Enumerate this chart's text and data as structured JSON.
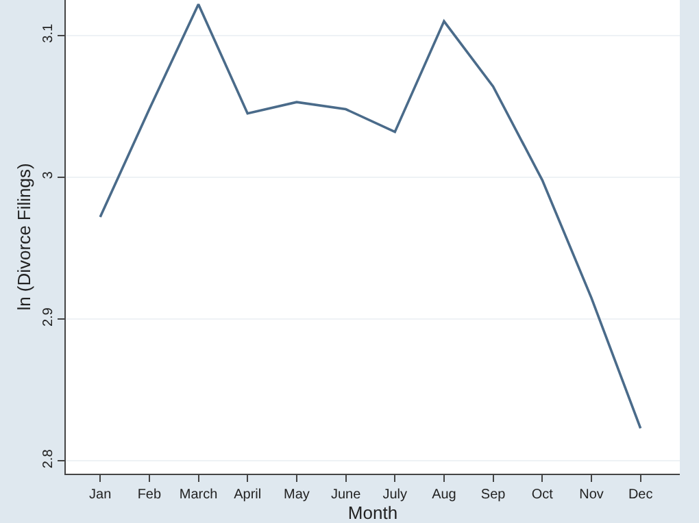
{
  "chart_data": {
    "type": "line",
    "xlabel": "Month",
    "ylabel": "ln (Divorce Filings)",
    "categories": [
      "Jan",
      "Feb",
      "March",
      "April",
      "May",
      "June",
      "July",
      "Aug",
      "Sep",
      "Oct",
      "Nov",
      "Dec"
    ],
    "series": [
      {
        "color": "#4a6b8a",
        "values": [
          2.972,
          3.048,
          3.122,
          3.045,
          3.053,
          3.048,
          3.032,
          3.11,
          3.064,
          2.998,
          2.915,
          2.823
        ]
      }
    ],
    "ylim": [
      2.791,
      3.125
    ],
    "yticks": [
      2.8,
      2.9,
      3,
      3.1
    ],
    "grid": "y",
    "legend": false,
    "marker": "none",
    "line_style": "solid"
  }
}
